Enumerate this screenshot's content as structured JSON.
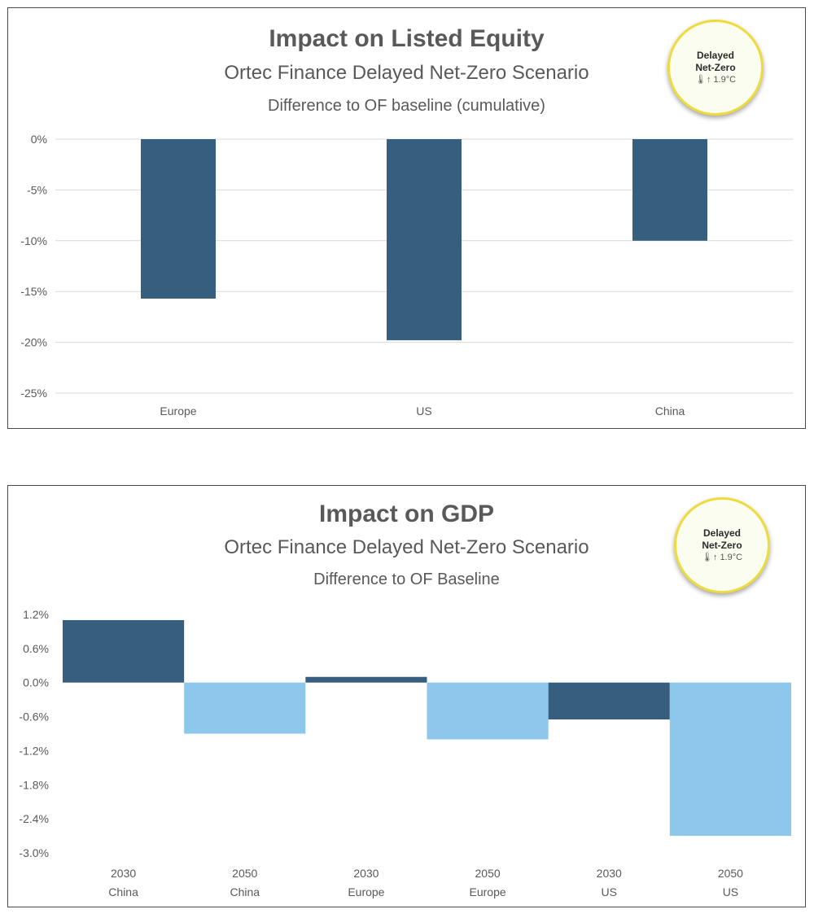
{
  "colors": {
    "dark_bar": "#365f7f",
    "light_bar": "#8dc7ec",
    "grid": "#d9d9d9",
    "text": "#595959",
    "badge_ring": "#eedb3c"
  },
  "badge": {
    "line1": "Delayed",
    "line2": "Net-Zero",
    "temp": "🌡↑ 1.9°C"
  },
  "chart_data": [
    {
      "type": "bar",
      "title": "Impact on Listed Equity",
      "subtitle": "Ortec Finance Delayed Net-Zero Scenario",
      "subtitle2": "Difference to OF baseline (cumulative)",
      "xlabel": "",
      "ylabel": "",
      "categories": [
        "Europe",
        "US",
        "China"
      ],
      "values": [
        -15.7,
        -19.8,
        -10.0
      ],
      "ylim": [
        -25,
        0
      ],
      "yticks": [
        0,
        -5,
        -10,
        -15,
        -20,
        -25
      ],
      "ytick_labels": [
        "0%",
        "-5%",
        "-10%",
        "-15%",
        "-20%",
        "-25%"
      ],
      "grid": true,
      "legend": "none"
    },
    {
      "type": "bar",
      "title": "Impact on GDP",
      "subtitle": "Ortec Finance Delayed Net-Zero Scenario",
      "subtitle2": "Difference to OF Baseline",
      "xlabel": "",
      "ylabel": "",
      "categories": [
        {
          "year": "2030",
          "region": "China"
        },
        {
          "year": "2050",
          "region": "China"
        },
        {
          "year": "2030",
          "region": "Europe"
        },
        {
          "year": "2050",
          "region": "Europe"
        },
        {
          "year": "2030",
          "region": "US"
        },
        {
          "year": "2050",
          "region": "US"
        }
      ],
      "values": [
        1.1,
        -0.9,
        0.1,
        -1.0,
        -0.65,
        -2.7
      ],
      "ylim": [
        -3.0,
        1.2
      ],
      "yticks": [
        1.2,
        0.6,
        0.0,
        -0.6,
        -1.2,
        -1.8,
        -2.4,
        -3.0
      ],
      "ytick_labels": [
        "1.2%",
        "0.6%",
        "0.0%",
        "-0.6%",
        "-1.2%",
        "-1.8%",
        "-2.4%",
        "-3.0%"
      ],
      "grid": false,
      "legend": "none"
    }
  ]
}
